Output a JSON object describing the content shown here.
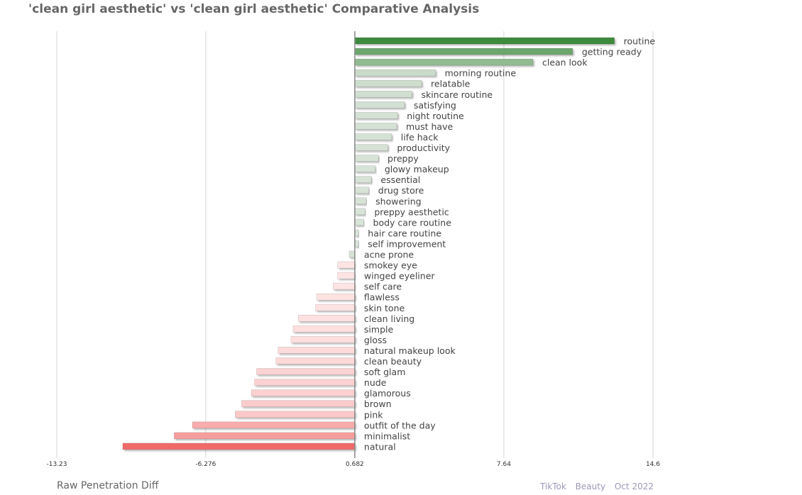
{
  "chart_data": {
    "type": "bar",
    "orientation": "horizontal",
    "title": "'clean girl aesthetic' vs 'clean girl aesthetic' Comparative Analysis",
    "xlabel": "Raw Penetration Diff",
    "xlim": [
      -13.23,
      14.6
    ],
    "xticks": [
      "-13.23",
      "-6.276",
      "0.682",
      "7.64",
      "14.6"
    ],
    "xtick_values": [
      -13.23,
      -6.276,
      0.682,
      7.64,
      14.6
    ],
    "baseline": 0.682,
    "grid": true,
    "categories": [
      "routine",
      "getting ready",
      "clean look",
      "morning routine",
      "relatable",
      "skincare routine",
      "satisfying",
      "night routine",
      "must have",
      "life hack",
      "productivity",
      "preppy",
      "glowy makeup",
      "essential",
      "drug store",
      "showering",
      "preppy aesthetic",
      "body care routine",
      "hair care routine",
      "self improvement",
      "acne prone",
      "smokey eye",
      "winged eyeliner",
      "self care",
      "flawless",
      "skin tone",
      "clean living",
      "simple",
      "gloss",
      "natural makeup look",
      "clean beauty",
      "soft glam",
      "nude",
      "glamorous",
      "brown",
      "pink",
      "outfit of the day",
      "minimalist",
      "natural"
    ],
    "values": [
      12.8,
      10.85,
      9.0,
      4.45,
      3.8,
      3.35,
      3.0,
      2.68,
      2.64,
      2.4,
      2.22,
      1.78,
      1.64,
      1.46,
      1.34,
      1.22,
      1.16,
      1.1,
      0.86,
      0.86,
      0.42,
      -0.12,
      -0.12,
      -0.33,
      -1.1,
      -1.15,
      -1.95,
      -2.2,
      -2.3,
      -2.9,
      -3.0,
      -3.9,
      -4.0,
      -4.15,
      -4.6,
      -4.9,
      -6.9,
      -7.75,
      -10.15
    ],
    "colors": {
      "positive_strong": "#3d8b3d",
      "positive_light": "#d9e4d9",
      "negative_light": "#ffe4e4",
      "negative_strong": "#f06b6b"
    }
  },
  "footer": {
    "platform": "TikTok",
    "category": "Beauty",
    "date": "Oct 2022"
  }
}
